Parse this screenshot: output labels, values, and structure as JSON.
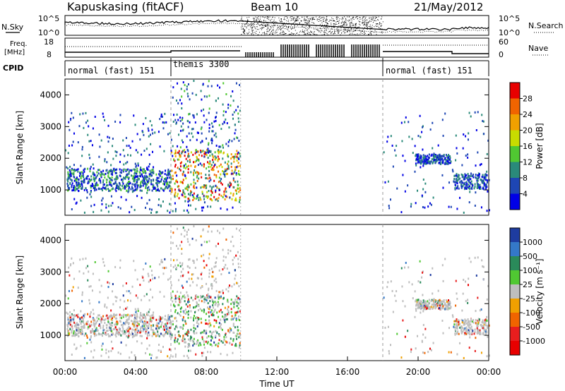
{
  "header": {
    "title": "Kapuskasing (fitACF)",
    "beam": "Beam 10",
    "date": "21/May/2012"
  },
  "top_panels": {
    "nsky_label": "N.Sky",
    "nsearch_label": "N.Search",
    "freq_label_1": "Freq.",
    "freq_label_2": "[MHz]",
    "nave_label": "Nave",
    "cpid_label": "CPID",
    "noise_left_ticks": [
      "10^5",
      "10^0"
    ],
    "noise_right_ticks": [
      "10^5",
      "10^0"
    ],
    "freq_ticks": [
      "18",
      "8"
    ],
    "nave_ticks": [
      "60",
      "0"
    ],
    "cpid_segments": [
      {
        "label": "normal (fast) 151",
        "start_h": 0,
        "end_h": 6
      },
      {
        "label": "themis 3300",
        "start_h": 6,
        "end_h": 18
      },
      {
        "label": "normal (fast) 151",
        "start_h": 18,
        "end_h": 24
      }
    ]
  },
  "chart_data": [
    {
      "type": "heatmap",
      "name": "power",
      "ylabel": "Slant Range [km]",
      "ylim": [
        200,
        4500
      ],
      "yticks": [
        1000,
        2000,
        3000,
        4000
      ],
      "xlim_hours": [
        0,
        24
      ],
      "colorbar": {
        "label": "Power [dB]",
        "ticks": [
          "28",
          "24",
          "20",
          "16",
          "12",
          "8",
          "4"
        ],
        "colors": [
          "#e80000",
          "#f06400",
          "#f0a000",
          "#c8dc00",
          "#50c832",
          "#2a8a7a",
          "#1e46b4",
          "#0000e6"
        ]
      },
      "regions": [
        {
          "h0": 0.1,
          "h1": 6.0,
          "r_center": 1350,
          "width": 350,
          "level": "mid"
        },
        {
          "h0": 6.0,
          "h1": 9.9,
          "r_center": 1500,
          "width": 800,
          "level": "high"
        },
        {
          "h0": 22.0,
          "h1": 23.9,
          "r_center": 1300,
          "width": 250,
          "level": "low"
        },
        {
          "h0": 19.8,
          "h1": 21.8,
          "r_center": 2000,
          "width": 150,
          "level": "low"
        }
      ]
    },
    {
      "type": "heatmap",
      "name": "velocity",
      "ylabel": "Slant Range [km]",
      "ylim": [
        200,
        4500
      ],
      "yticks": [
        1000,
        2000,
        3000,
        4000
      ],
      "xlim_hours": [
        0,
        24
      ],
      "colorbar": {
        "label": "Velocity [m s⁻¹]",
        "ticks": [
          "1000",
          "500",
          "100",
          "25",
          "-25",
          "-100",
          "-500",
          "-1000"
        ],
        "colors": [
          "#1e3ca0",
          "#3478c8",
          "#2a8a5a",
          "#50c832",
          "#bebebe",
          "#f0a000",
          "#f06400",
          "#e81e1e",
          "#e80000"
        ]
      }
    }
  ],
  "x_axis": {
    "ticks": [
      "00:00",
      "04:00",
      "08:00",
      "12:00",
      "16:00",
      "20:00",
      "00:00"
    ],
    "label": "Time UT"
  }
}
